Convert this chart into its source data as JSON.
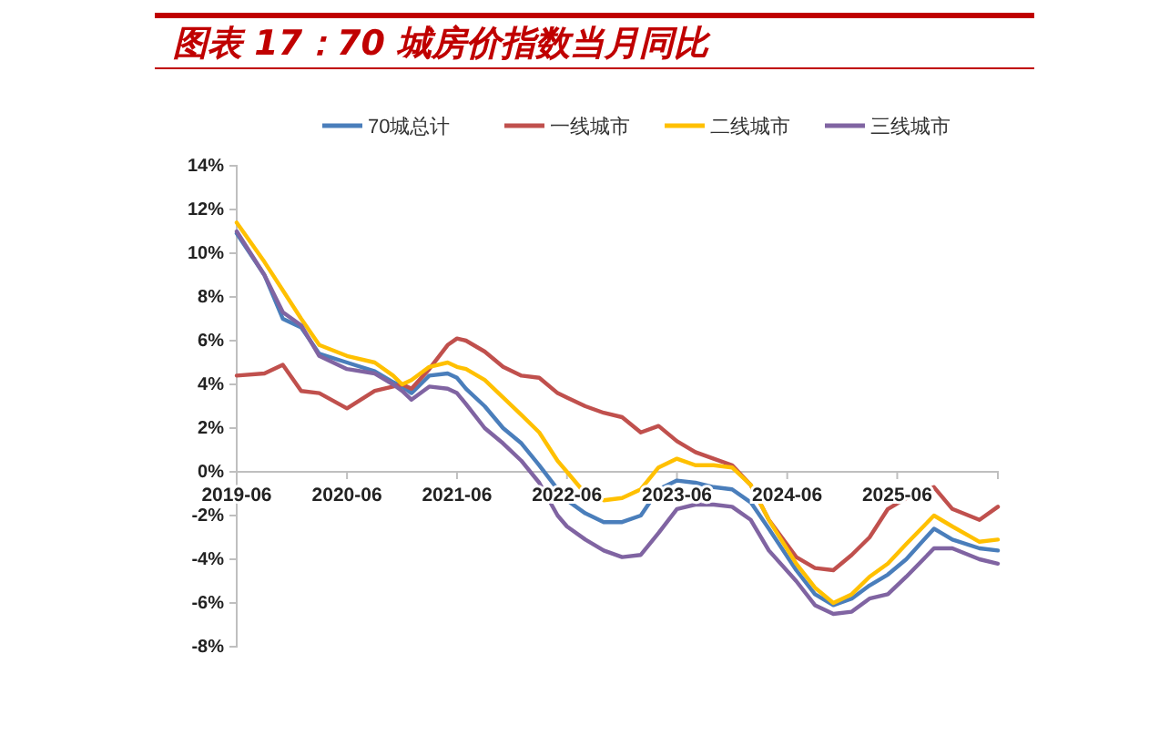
{
  "chart_data": {
    "type": "line",
    "title": "图表 17：70 城房价指数当月同比",
    "x": [
      "2019-06",
      "2019-09",
      "2019-11",
      "2020-01",
      "2020-03",
      "2020-06",
      "2020-09",
      "2020-11",
      "2020-12",
      "2021-01",
      "2021-03",
      "2021-05",
      "2021-06",
      "2021-07",
      "2021-09",
      "2021-11",
      "2022-01",
      "2022-03",
      "2022-05",
      "2022-06",
      "2022-08",
      "2022-10",
      "2022-12",
      "2023-02",
      "2023-04",
      "2023-06",
      "2023-08",
      "2023-10",
      "2023-12",
      "2024-02",
      "2024-04",
      "2024-07",
      "2024-09",
      "2024-11",
      "2025-01",
      "2025-03",
      "2025-05",
      "2025-07",
      "2025-10",
      "2025-12",
      "2026-03",
      "2026-05"
    ],
    "series": [
      {
        "name": "70城总计",
        "color": "#4a7ebb",
        "values": [
          10.9,
          9.0,
          7.0,
          6.6,
          5.4,
          5.0,
          4.6,
          4.1,
          3.9,
          3.6,
          4.4,
          4.5,
          4.3,
          3.8,
          3.0,
          2.0,
          1.3,
          0.3,
          -0.8,
          -1.3,
          -1.9,
          -2.3,
          -2.3,
          -2.0,
          -0.8,
          -0.4,
          -0.5,
          -0.7,
          -0.8,
          -1.4,
          -2.6,
          -4.5,
          -5.6,
          -6.1,
          -5.8,
          -5.2,
          -4.7,
          -4.0,
          -2.6,
          -3.1,
          -3.5,
          -3.6
        ]
      },
      {
        "name": "一线城市",
        "color": "#c0504d",
        "values": [
          4.4,
          4.5,
          4.9,
          3.7,
          3.6,
          2.9,
          3.7,
          3.9,
          4.0,
          3.8,
          4.7,
          5.8,
          6.1,
          6.0,
          5.5,
          4.8,
          4.4,
          4.3,
          3.6,
          3.4,
          3.0,
          2.7,
          2.5,
          1.8,
          2.1,
          1.4,
          0.9,
          0.6,
          0.3,
          -0.6,
          -2.2,
          -3.9,
          -4.4,
          -4.5,
          -3.8,
          -3.0,
          -1.7,
          -1.2,
          -0.7,
          -1.7,
          -2.2,
          -1.6
        ]
      },
      {
        "name": "二线城市",
        "color": "#ffc000",
        "values": [
          11.4,
          9.6,
          8.3,
          7.0,
          5.8,
          5.3,
          5.0,
          4.4,
          4.0,
          4.2,
          4.8,
          5.0,
          4.8,
          4.7,
          4.2,
          3.4,
          2.6,
          1.8,
          0.5,
          0.0,
          -1.0,
          -1.3,
          -1.2,
          -0.8,
          0.2,
          0.6,
          0.3,
          0.3,
          0.2,
          -0.6,
          -2.2,
          -4.2,
          -5.3,
          -6.0,
          -5.6,
          -4.8,
          -4.2,
          -3.3,
          -2.0,
          -2.5,
          -3.2,
          -3.1
        ]
      },
      {
        "name": "三线城市",
        "color": "#8064a2",
        "values": [
          11.0,
          9.0,
          7.3,
          6.7,
          5.3,
          4.7,
          4.5,
          4.0,
          3.7,
          3.3,
          3.9,
          3.8,
          3.6,
          3.1,
          2.0,
          1.3,
          0.5,
          -0.5,
          -2.0,
          -2.5,
          -3.1,
          -3.6,
          -3.9,
          -3.8,
          -2.8,
          -1.7,
          -1.5,
          -1.5,
          -1.6,
          -2.2,
          -3.6,
          -5.0,
          -6.1,
          -6.5,
          -6.4,
          -5.8,
          -5.6,
          -4.8,
          -3.5,
          -3.5,
          -4.0,
          -4.2
        ]
      }
    ],
    "xlim": [
      "2019-06",
      "2026-05"
    ],
    "xticks": [
      "2019-06",
      "2020-06",
      "2021-06",
      "2022-06",
      "2023-06",
      "2024-06",
      "2025-06"
    ],
    "ylim": [
      -8,
      14
    ],
    "yticks": [
      {
        "value": -8,
        "label": "-8%"
      },
      {
        "value": -6,
        "label": "-6%"
      },
      {
        "value": -4,
        "label": "-4%"
      },
      {
        "value": -2,
        "label": "-2%"
      },
      {
        "value": 0,
        "label": "0%"
      },
      {
        "value": 2,
        "label": "2%"
      },
      {
        "value": 4,
        "label": "4%"
      },
      {
        "value": 6,
        "label": "6%"
      },
      {
        "value": 8,
        "label": "8%"
      },
      {
        "value": 10,
        "label": "10%"
      },
      {
        "value": 12,
        "label": "12%"
      },
      {
        "value": 14,
        "label": "14%"
      }
    ],
    "legend": "top",
    "grid": false,
    "line_style": "solid",
    "marker": "none"
  }
}
